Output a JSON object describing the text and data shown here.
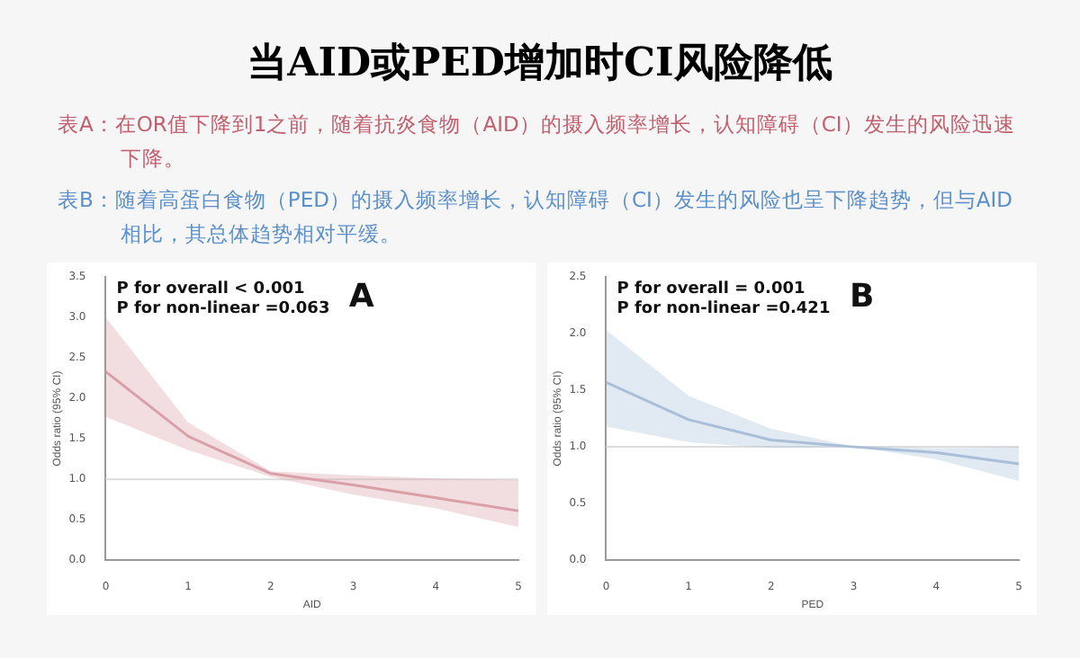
{
  "chart_data": [
    {
      "type": "other",
      "title": "当AID或PED增加时CI风险降低",
      "annotations": [
        "表A：在OR值下降到1之前，随着抗炎食物（AID）的摄入频率增长，认知障碍（CI）发生的风险迅速下降。",
        "表B：随着高蛋白食物（PED）的摄入频率增长，认知障碍（CI）发生的风险也呈下降趋势，但与AID相比，其总体趋势相对平缓。"
      ]
    },
    {
      "type": "line",
      "title": "A",
      "xlabel": "AID",
      "ylabel": "Odds ratio (95% CI)",
      "x": [
        0,
        1,
        2,
        3,
        4,
        5
      ],
      "xlim": [
        0,
        5
      ],
      "xticks": [
        0,
        1,
        2,
        3,
        4,
        5
      ],
      "ylim": [
        0,
        3.5
      ],
      "yticks": [
        {
          "value": 0,
          "label": "0.0"
        },
        0.5,
        {
          "value": 1,
          "label": "1.0"
        },
        1.5,
        {
          "value": 2,
          "label": "2.0"
        },
        2.5,
        {
          "value": 3,
          "label": "3.0"
        },
        3.5
      ],
      "grid": false,
      "legend": false,
      "marker": "none",
      "annotations": [
        "P for overall < 0.001",
        "P for non-linear =0.063"
      ],
      "ref_lines": [
        {
          "axis": "y",
          "value": 1,
          "color": "#dddddd"
        }
      ],
      "series": [
        {
          "color": "#d9a0a8",
          "values": [
            2.33,
            1.53,
            1.07,
            0.93,
            0.77,
            0.61
          ],
          "lower": [
            1.77,
            1.36,
            1.03,
            0.81,
            0.64,
            0.41
          ],
          "upper": [
            3.0,
            1.7,
            1.1,
            1.05,
            1.01,
            0.99
          ]
        }
      ]
    },
    {
      "type": "line",
      "title": "B",
      "xlabel": "PED",
      "ylabel": "Odds ratio (95% CI)",
      "x": [
        0,
        1,
        2,
        3,
        4,
        5
      ],
      "xlim": [
        0,
        5
      ],
      "xticks": [
        0,
        1,
        2,
        3,
        4,
        5
      ],
      "ylim": [
        0,
        2.5
      ],
      "yticks": [
        {
          "value": 0,
          "label": "0.0"
        },
        0.5,
        {
          "value": 1,
          "label": "1.0"
        },
        1.5,
        {
          "value": 2,
          "label": "2.0"
        },
        2.5
      ],
      "grid": false,
      "legend": false,
      "marker": "none",
      "annotations": [
        "P for overall = 0.001",
        "P for non-linear =0.421"
      ],
      "ref_lines": [
        {
          "axis": "y",
          "value": 1,
          "color": "#dddddd"
        }
      ],
      "series": [
        {
          "color": "#a9bfd9",
          "values": [
            1.57,
            1.24,
            1.06,
            1.0,
            0.95,
            0.85
          ],
          "lower": [
            1.18,
            1.04,
            0.99,
            1.0,
            0.89,
            0.7
          ],
          "upper": [
            2.03,
            1.45,
            1.16,
            1.0,
            0.99,
            1.0
          ]
        }
      ]
    }
  ]
}
